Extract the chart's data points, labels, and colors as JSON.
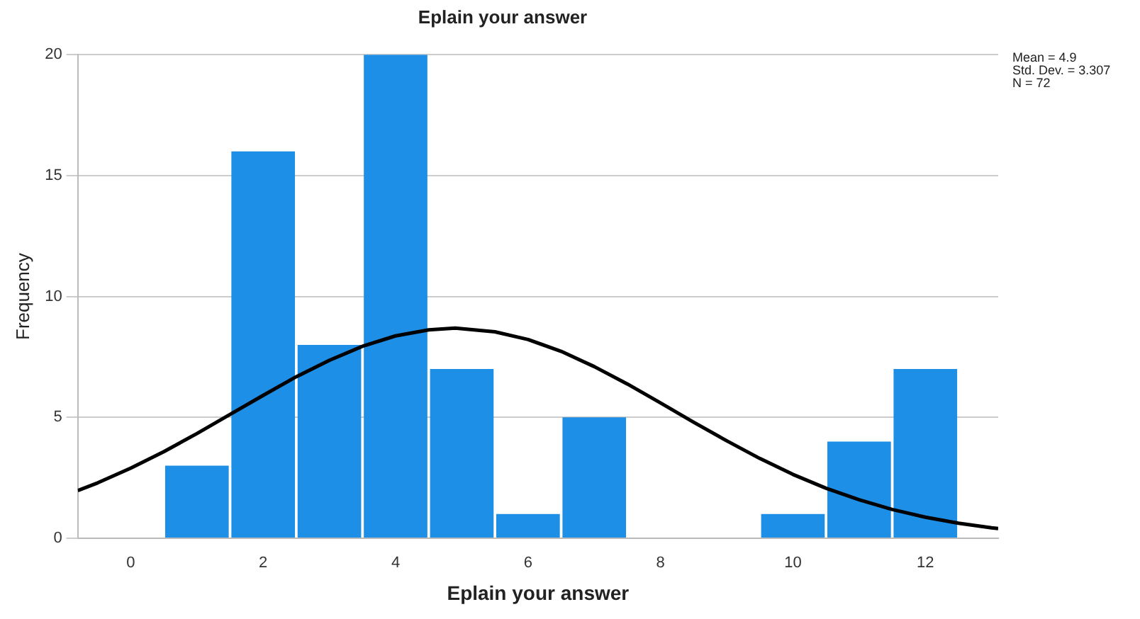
{
  "chart_data": {
    "type": "histogram",
    "title": "Eplain your answer",
    "xlabel": "Eplain your answer",
    "ylabel": "Frequency",
    "annotations": [
      "Mean = 4.9",
      "Std. Dev. = 3.307",
      "N = 72"
    ],
    "xlim": [
      -0.8,
      13.1
    ],
    "xticks": [
      0,
      2,
      4,
      6,
      8,
      10,
      12
    ],
    "ylim": [
      0,
      20
    ],
    "yticks": [
      0,
      5,
      10,
      15,
      20
    ],
    "grid": "y",
    "legend": false,
    "series": [
      {
        "type": "histogram",
        "color": "#1e8fe6",
        "bins": [
          0.5,
          1.5,
          2.5,
          3.5,
          4.5,
          5.5,
          6.5,
          7.5,
          8.5,
          9.5,
          10.5,
          11.5,
          12.5
        ],
        "values": [
          3,
          16,
          8,
          20,
          7,
          1,
          5,
          0,
          0,
          1,
          4,
          7
        ]
      },
      {
        "type": "line",
        "color": "#000000",
        "marker": "none",
        "x": [
          -0.8,
          -0.5,
          0,
          0.5,
          1,
          1.5,
          2,
          2.5,
          3,
          3.5,
          4,
          4.5,
          4.9,
          5.5,
          6,
          6.5,
          7,
          7.5,
          8,
          8.5,
          9,
          9.5,
          10,
          10.5,
          11,
          11.5,
          12,
          12.5,
          13,
          13.1
        ],
        "values": [
          1.97,
          2.29,
          2.9,
          3.58,
          4.33,
          5.12,
          5.91,
          6.68,
          7.36,
          7.94,
          8.37,
          8.62,
          8.69,
          8.54,
          8.22,
          7.73,
          7.1,
          6.38,
          5.6,
          4.8,
          4.03,
          3.3,
          2.64,
          2.07,
          1.59,
          1.19,
          0.87,
          0.62,
          0.43,
          0.4
        ]
      }
    ]
  }
}
